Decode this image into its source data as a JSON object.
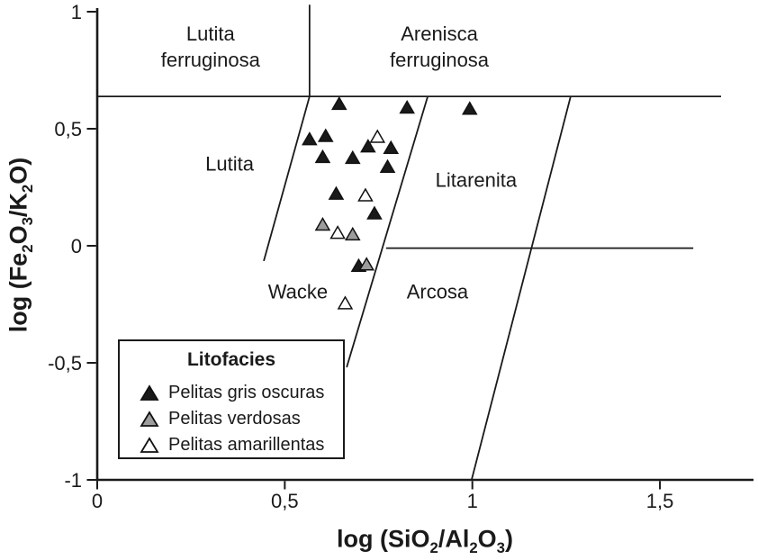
{
  "chart_data": {
    "type": "scatter",
    "title": "",
    "x_axis": {
      "title": "log (SiO_2/Al_2O_3)",
      "range": [
        0,
        1.75
      ],
      "ticks": [
        {
          "v": 0,
          "label": "0"
        },
        {
          "v": 0.5,
          "label": "0,5"
        },
        {
          "v": 1,
          "label": "1"
        },
        {
          "v": 1.5,
          "label": "1,5"
        }
      ]
    },
    "y_axis": {
      "title": "log (Fe_2O_3/K_2O)",
      "range": [
        -1,
        1
      ],
      "ticks": [
        {
          "v": 1,
          "label": "1"
        },
        {
          "v": 0.5,
          "label": "0,5"
        },
        {
          "v": 0,
          "label": "0"
        },
        {
          "v": -0.5,
          "label": "-0,5"
        },
        {
          "v": -1,
          "label": "-1"
        }
      ]
    },
    "grid": false,
    "regions": [
      {
        "name": "region-lutita-ferruginosa",
        "label": "Lutita\nferruginosa",
        "x": 0.302,
        "y": 0.85
      },
      {
        "name": "region-arenisca-ferruginosa",
        "label": "Arenisca\nferruginosa",
        "x": 0.912,
        "y": 0.85
      },
      {
        "name": "region-lutita",
        "label": "Lutita",
        "x": 0.353,
        "y": 0.35
      },
      {
        "name": "region-litarenita",
        "label": "Litarenita",
        "x": 1.01,
        "y": 0.281
      },
      {
        "name": "region-wacke",
        "label": "Wacke",
        "x": 0.535,
        "y": -0.196
      },
      {
        "name": "region-arcosa",
        "label": "Arcosa",
        "x": 0.907,
        "y": -0.196
      }
    ],
    "boundaries": [
      {
        "name": "ferruginous-divider-line",
        "x1": 0,
        "y1": 0.638,
        "x2": 1.663,
        "y2": 0.638
      },
      {
        "name": "fe-lutita-arenisca-divider-line",
        "x1": 0.566,
        "y1": 0.638,
        "x2": 0.566,
        "y2": 1.03
      },
      {
        "name": "lutita-wacke-boundary-line",
        "x1": 0.566,
        "y1": 0.638,
        "x2": 0.444,
        "y2": -0.065
      },
      {
        "name": "wacke-litarenita-boundary-line",
        "x1": 0.881,
        "y1": 0.638,
        "x2": 0.665,
        "y2": -0.519
      },
      {
        "name": "litarenita-right-boundary-line",
        "x1": 1.262,
        "y1": 0.638,
        "x2": 0.998,
        "y2": -1.0
      },
      {
        "name": "litarenita-arcosa-divider-line",
        "x1": 0.77,
        "y1": -0.01,
        "x2": 1.589,
        "y2": -0.01
      }
    ],
    "legend": {
      "title": "Litofacies",
      "position": "bottom-left"
    },
    "series": [
      {
        "name": "Pelitas gris oscuras",
        "symbol": "filled-triangle",
        "color": "#1a1a1a",
        "points": [
          [
            0.645,
            0.601
          ],
          [
            0.826,
            0.585
          ],
          [
            0.993,
            0.58
          ],
          [
            0.566,
            0.45
          ],
          [
            0.609,
            0.464
          ],
          [
            0.601,
            0.374
          ],
          [
            0.681,
            0.37
          ],
          [
            0.722,
            0.419
          ],
          [
            0.783,
            0.413
          ],
          [
            0.774,
            0.332
          ],
          [
            0.637,
            0.217
          ],
          [
            0.739,
            0.133
          ],
          [
            0.697,
            -0.091
          ]
        ]
      },
      {
        "name": "Pelitas verdosas",
        "symbol": "gray-triangle",
        "color": "#9c9c9c",
        "points": [
          [
            0.601,
            0.085
          ],
          [
            0.681,
            0.043
          ],
          [
            0.718,
            -0.085
          ]
        ]
      },
      {
        "name": "Pelitas amarillentas",
        "symbol": "open-triangle",
        "color": "#ffffff",
        "points": [
          [
            0.747,
            0.46
          ],
          [
            0.715,
            0.21
          ],
          [
            0.641,
            0.05
          ],
          [
            0.661,
            -0.251
          ]
        ]
      }
    ],
    "colors": {
      "ink": "#1a1a1a",
      "symbol_stroke": "#111111",
      "background": "#ffffff"
    }
  }
}
